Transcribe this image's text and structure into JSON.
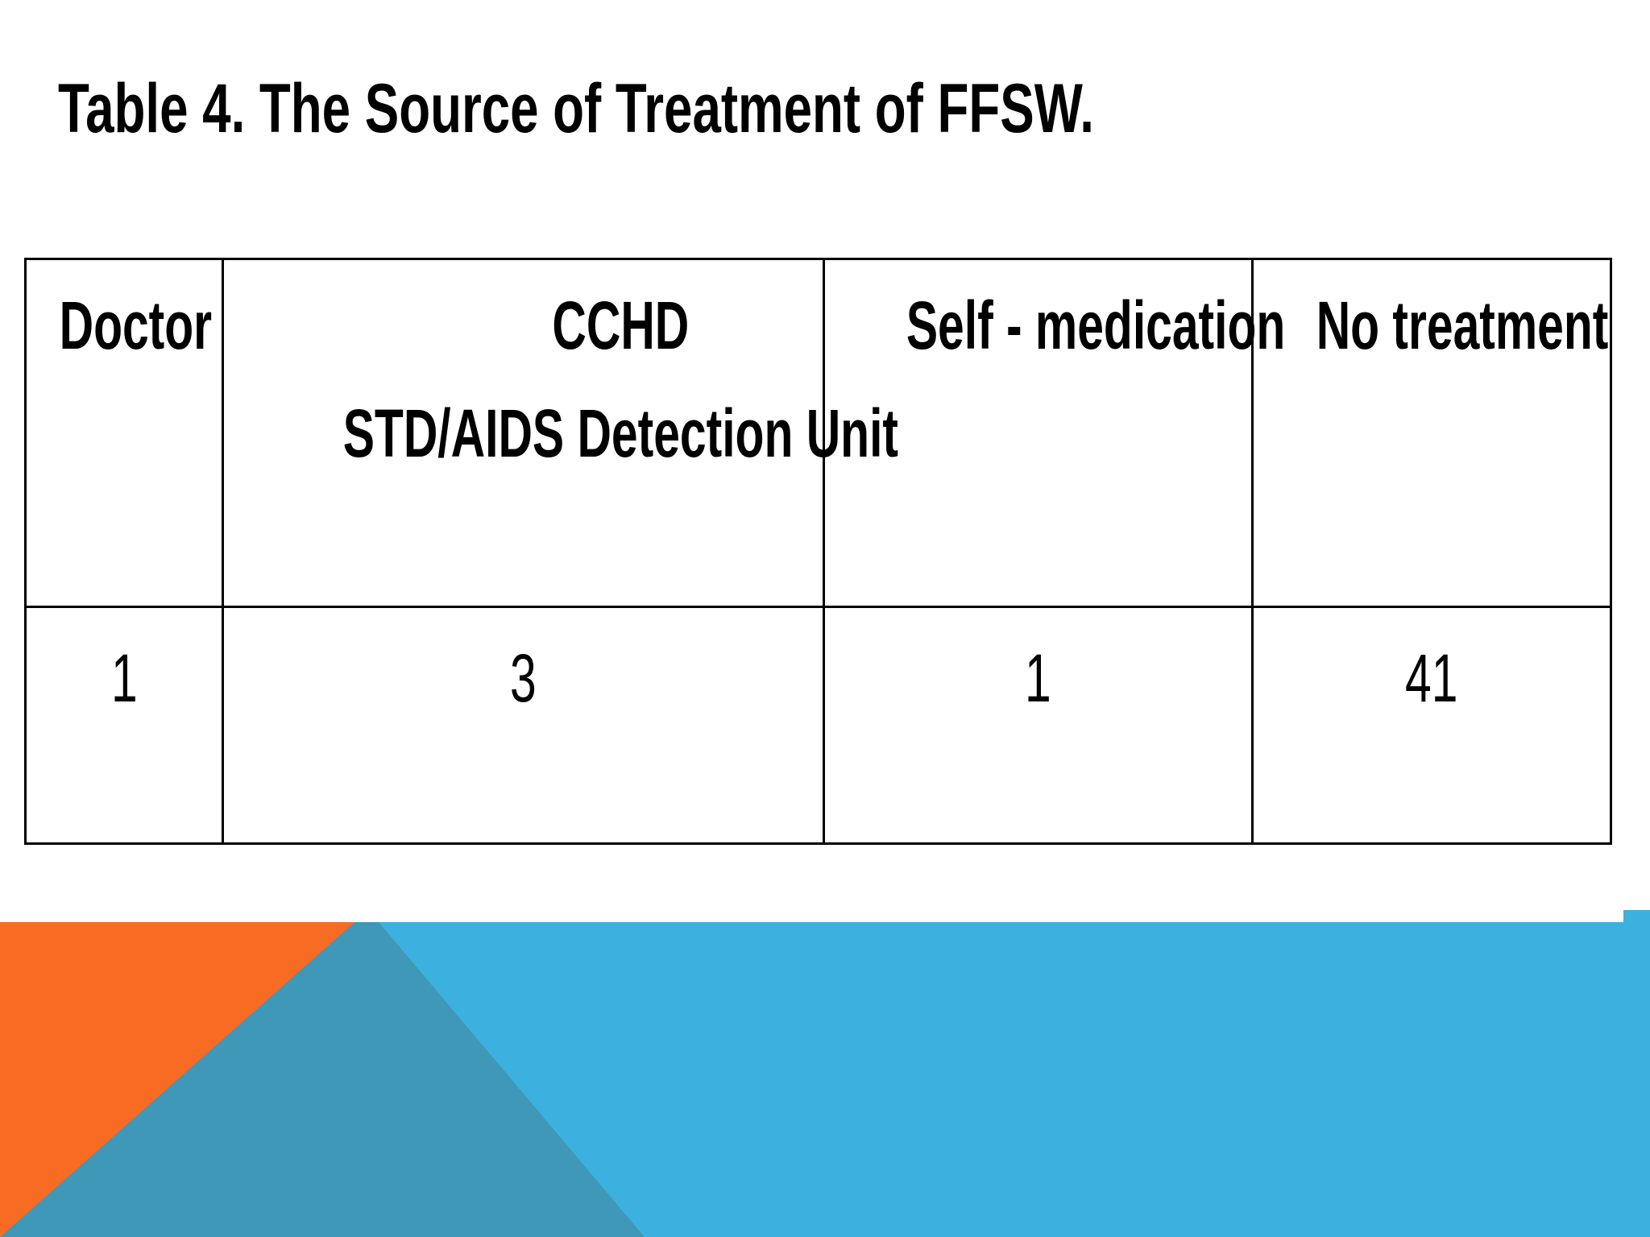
{
  "slide": {
    "title": "Table 4. The Source of Treatment of FFSW."
  },
  "table": {
    "headers": [
      {
        "line1": "Doctor",
        "line2": ""
      },
      {
        "line1": "CCHD",
        "line2": "STD/AIDS Detection Unit"
      },
      {
        "line1": "Self - medication",
        "line2": ""
      },
      {
        "line1": "No treatment",
        "line2": ""
      }
    ],
    "rows": [
      [
        "1",
        "3",
        "1",
        "41"
      ]
    ]
  },
  "decoration": {
    "colors": {
      "orange": "#f86b22",
      "teal_dark": "#3f98b8",
      "blue": "#3cb1e0"
    }
  }
}
